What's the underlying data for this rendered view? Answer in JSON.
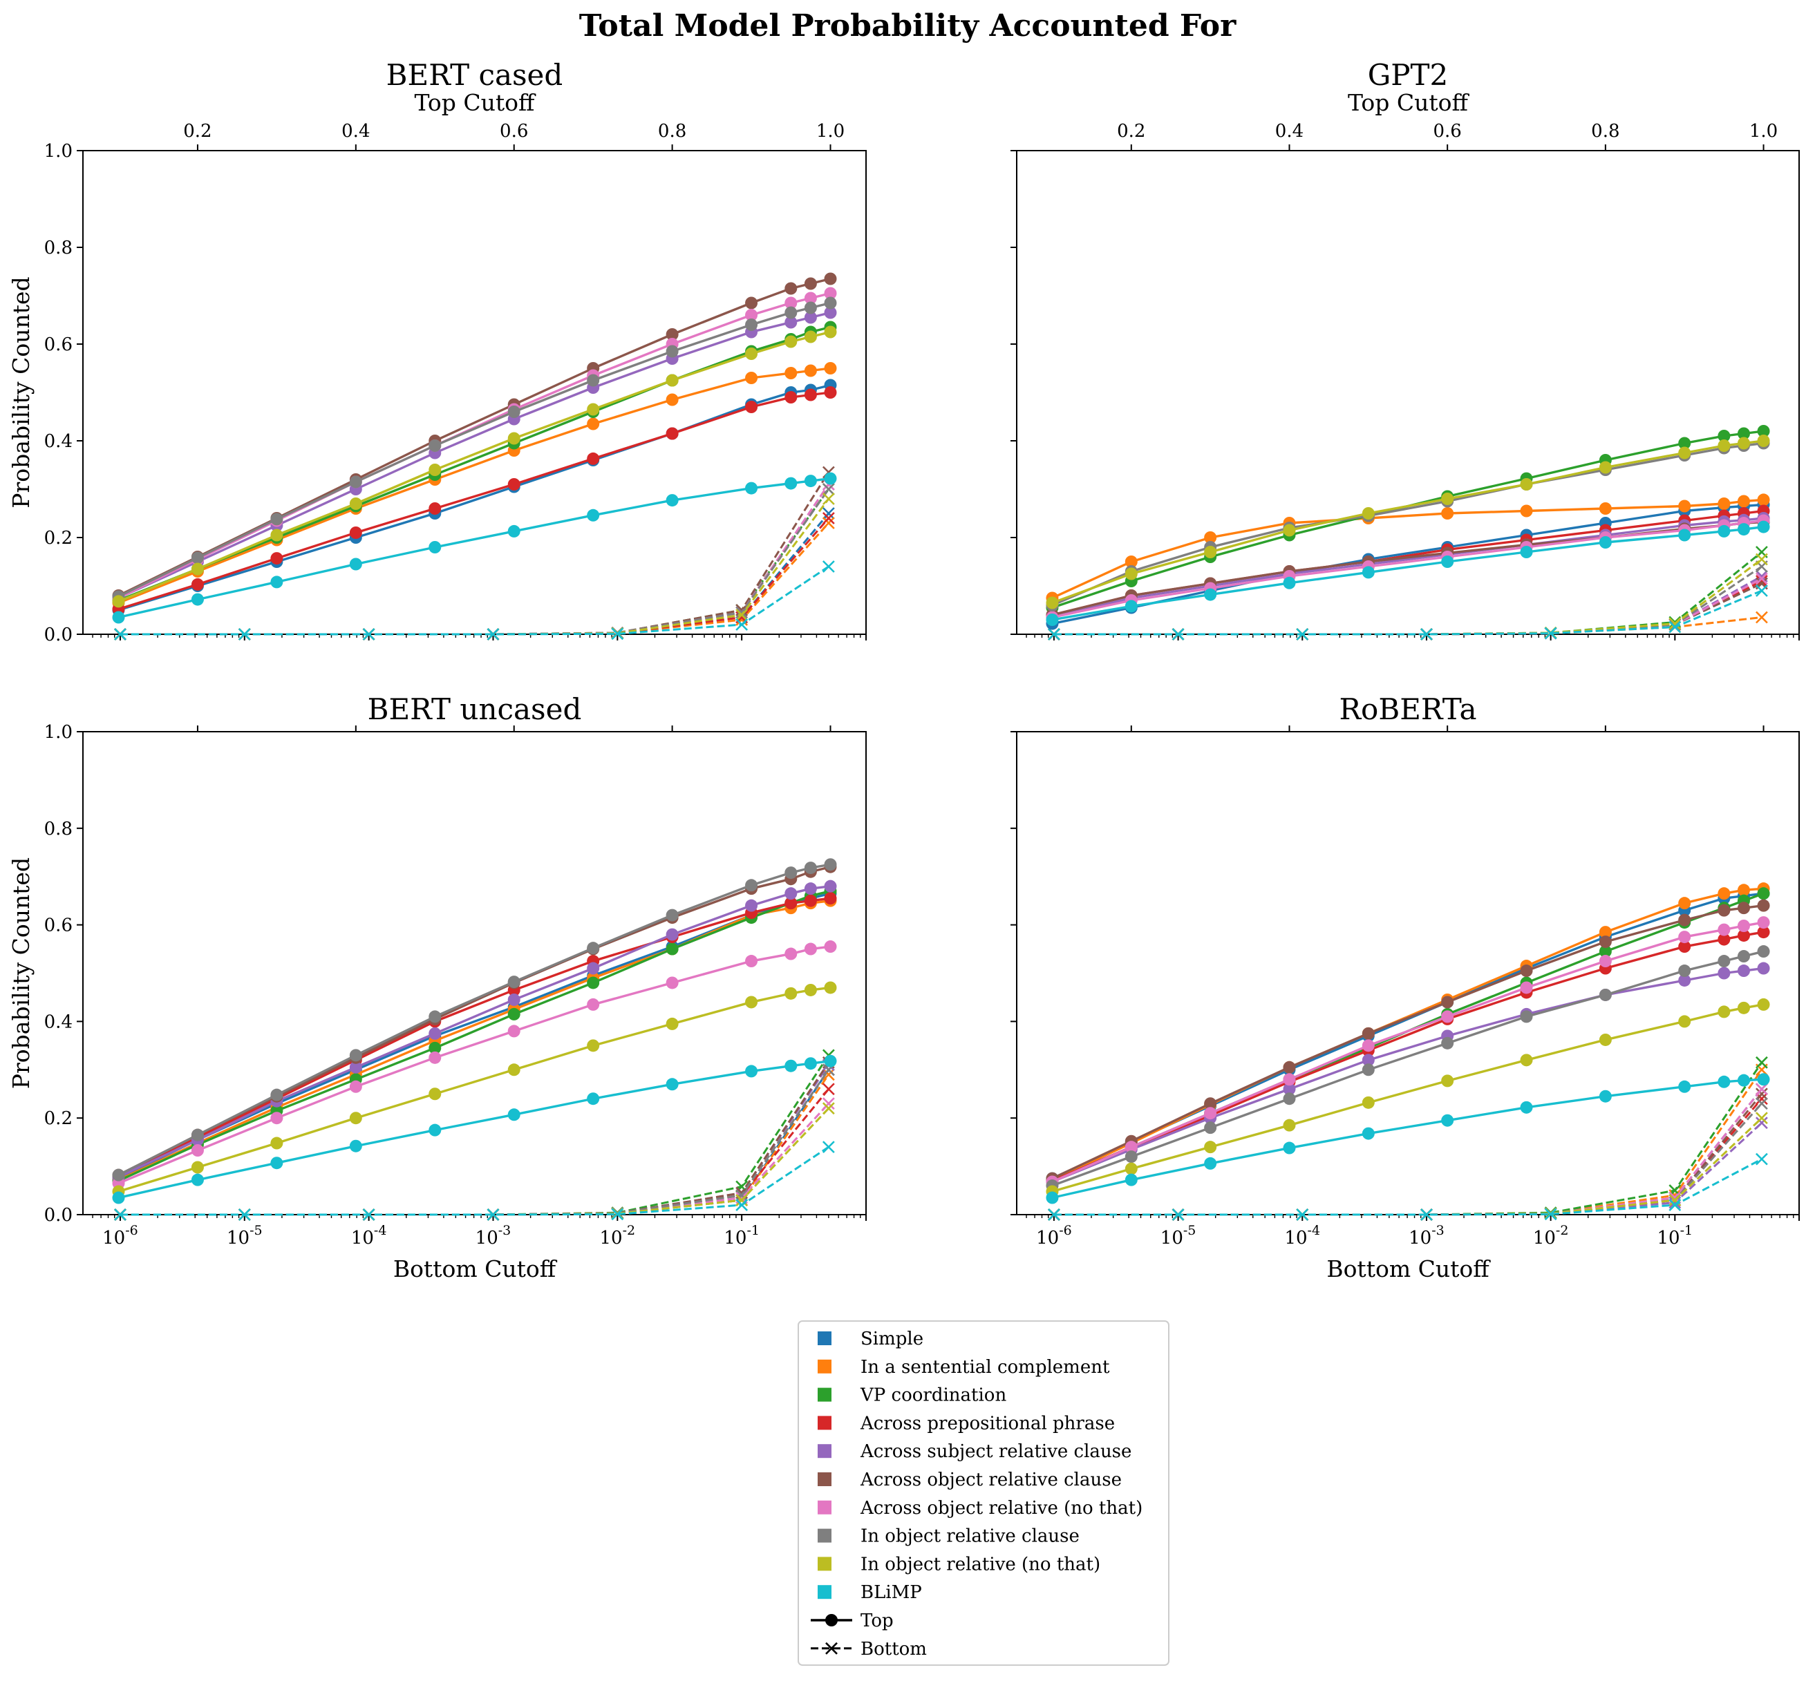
{
  "figure": {
    "title": "Total Model Probability Accounted For"
  },
  "chart_data": {
    "type": "line",
    "shared": {
      "bottom_cutoff_label": "Bottom Cutoff",
      "top_cutoff_label": "Top Cutoff",
      "ylabel": "Probability Counted",
      "ylim": [
        0,
        1.0
      ],
      "yticks": [
        "0.0",
        "0.2",
        "0.4",
        "0.6",
        "0.8",
        "1.0"
      ],
      "bottom_x_scale": "log",
      "bottom_x_ticks": [
        "10^-6",
        "10^-5",
        "10^-4",
        "10^-3",
        "10^-2",
        "10^-1"
      ],
      "top_x_ticks": [
        "0.2",
        "0.4",
        "0.6",
        "0.8",
        "1.0"
      ],
      "top_cutoff_x": [
        0.1,
        0.2,
        0.3,
        0.4,
        0.5,
        0.6,
        0.7,
        0.8,
        0.9,
        0.95,
        0.975,
        1.0
      ],
      "bottom_cutoff_x": [
        1e-06,
        1e-05,
        0.0001,
        0.001,
        0.01,
        0.1,
        0.5
      ]
    },
    "colors": [
      "#1f77b4",
      "#ff7f0e",
      "#2ca02c",
      "#d62728",
      "#9467bd",
      "#8c564b",
      "#e377c2",
      "#7f7f7f",
      "#bcbd22",
      "#17becf"
    ],
    "legend": {
      "placement": "bottom-center",
      "entries": [
        "Simple",
        "In a sentential complement",
        "VP coordination",
        "Across prepositional phrase",
        "Across subject relative clause",
        "Across object relative clause",
        "Across object relative (no that)",
        "In object relative clause",
        "In object relative (no that)",
        "BLiMP"
      ],
      "top_label": "Top",
      "bottom_label": "Bottom"
    },
    "panels": [
      {
        "title": "BERT cased",
        "top": [
          [
            0.05,
            0.1,
            0.15,
            0.2,
            0.25,
            0.305,
            0.36,
            0.415,
            0.475,
            0.5,
            0.505,
            0.515
          ],
          [
            0.065,
            0.13,
            0.195,
            0.26,
            0.32,
            0.38,
            0.435,
            0.485,
            0.53,
            0.54,
            0.545,
            0.55
          ],
          [
            0.07,
            0.135,
            0.2,
            0.265,
            0.33,
            0.395,
            0.46,
            0.525,
            0.585,
            0.61,
            0.625,
            0.635
          ],
          [
            0.052,
            0.103,
            0.157,
            0.21,
            0.26,
            0.31,
            0.363,
            0.415,
            0.47,
            0.49,
            0.495,
            0.5
          ],
          [
            0.075,
            0.15,
            0.225,
            0.3,
            0.375,
            0.445,
            0.51,
            0.57,
            0.625,
            0.645,
            0.655,
            0.665
          ],
          [
            0.08,
            0.16,
            0.24,
            0.32,
            0.4,
            0.475,
            0.55,
            0.62,
            0.685,
            0.715,
            0.725,
            0.735
          ],
          [
            0.075,
            0.155,
            0.235,
            0.315,
            0.39,
            0.465,
            0.535,
            0.6,
            0.66,
            0.685,
            0.695,
            0.705
          ],
          [
            0.078,
            0.158,
            0.238,
            0.315,
            0.39,
            0.46,
            0.525,
            0.585,
            0.64,
            0.665,
            0.675,
            0.685
          ],
          [
            0.068,
            0.135,
            0.205,
            0.27,
            0.34,
            0.405,
            0.465,
            0.525,
            0.58,
            0.605,
            0.615,
            0.625
          ],
          [
            0.035,
            0.072,
            0.108,
            0.145,
            0.18,
            0.213,
            0.246,
            0.277,
            0.302,
            0.312,
            0.317,
            0.322
          ]
        ],
        "bottom": [
          [
            0,
            0,
            0,
            0,
            0.002,
            0.035,
            0.25
          ],
          [
            0,
            0,
            0,
            0,
            0.002,
            0.03,
            0.23
          ],
          [
            0,
            0,
            0,
            0,
            0.003,
            0.05,
            0.3
          ],
          [
            0,
            0,
            0,
            0,
            0.002,
            0.035,
            0.24
          ],
          [
            0,
            0,
            0,
            0,
            0.003,
            0.045,
            0.31
          ],
          [
            0,
            0,
            0,
            0,
            0.003,
            0.05,
            0.335
          ],
          [
            0,
            0,
            0,
            0,
            0.003,
            0.045,
            0.31
          ],
          [
            0,
            0,
            0,
            0,
            0.003,
            0.045,
            0.3
          ],
          [
            0,
            0,
            0,
            0,
            0.002,
            0.04,
            0.28
          ],
          [
            0,
            0,
            0,
            0,
            0.001,
            0.02,
            0.14
          ]
        ]
      },
      {
        "title": "GPT2",
        "top": [
          [
            0.022,
            0.055,
            0.09,
            0.125,
            0.155,
            0.18,
            0.205,
            0.23,
            0.255,
            0.262,
            0.265,
            0.268
          ],
          [
            0.075,
            0.15,
            0.2,
            0.23,
            0.24,
            0.25,
            0.255,
            0.26,
            0.265,
            0.27,
            0.275,
            0.278
          ],
          [
            0.055,
            0.11,
            0.16,
            0.205,
            0.245,
            0.285,
            0.322,
            0.36,
            0.395,
            0.41,
            0.415,
            0.42
          ],
          [
            0.04,
            0.08,
            0.105,
            0.13,
            0.15,
            0.175,
            0.195,
            0.215,
            0.235,
            0.245,
            0.25,
            0.255
          ],
          [
            0.035,
            0.075,
            0.1,
            0.125,
            0.145,
            0.165,
            0.185,
            0.205,
            0.225,
            0.233,
            0.236,
            0.24
          ],
          [
            0.04,
            0.08,
            0.105,
            0.13,
            0.15,
            0.168,
            0.185,
            0.2,
            0.218,
            0.225,
            0.23,
            0.232
          ],
          [
            0.035,
            0.07,
            0.095,
            0.12,
            0.14,
            0.16,
            0.18,
            0.2,
            0.215,
            0.225,
            0.23,
            0.235
          ],
          [
            0.06,
            0.13,
            0.18,
            0.22,
            0.245,
            0.275,
            0.31,
            0.34,
            0.37,
            0.385,
            0.39,
            0.395
          ],
          [
            0.065,
            0.125,
            0.17,
            0.215,
            0.25,
            0.28,
            0.31,
            0.345,
            0.375,
            0.39,
            0.395,
            0.4
          ],
          [
            0.03,
            0.058,
            0.082,
            0.106,
            0.128,
            0.15,
            0.17,
            0.19,
            0.205,
            0.213,
            0.217,
            0.222
          ]
        ],
        "bottom": [
          [
            0,
            0,
            0,
            0,
            0.002,
            0.02,
            0.105
          ],
          [
            0,
            0,
            0,
            0,
            0.002,
            0.015,
            0.035
          ],
          [
            0,
            0,
            0,
            0,
            0.003,
            0.025,
            0.17
          ],
          [
            0,
            0,
            0,
            0,
            0.002,
            0.02,
            0.11
          ],
          [
            0,
            0,
            0,
            0,
            0.002,
            0.02,
            0.12
          ],
          [
            0,
            0,
            0,
            0,
            0.002,
            0.02,
            0.105
          ],
          [
            0,
            0,
            0,
            0,
            0.002,
            0.02,
            0.115
          ],
          [
            0,
            0,
            0,
            0,
            0.003,
            0.02,
            0.14
          ],
          [
            0,
            0,
            0,
            0,
            0.003,
            0.022,
            0.155
          ],
          [
            0,
            0,
            0,
            0,
            0.002,
            0.015,
            0.09
          ]
        ]
      },
      {
        "title": "BERT uncased",
        "top": [
          [
            0.075,
            0.155,
            0.23,
            0.3,
            0.37,
            0.43,
            0.495,
            0.555,
            0.62,
            0.645,
            0.655,
            0.665
          ],
          [
            0.072,
            0.148,
            0.222,
            0.29,
            0.36,
            0.425,
            0.49,
            0.55,
            0.62,
            0.635,
            0.645,
            0.65
          ],
          [
            0.07,
            0.145,
            0.215,
            0.28,
            0.345,
            0.415,
            0.48,
            0.55,
            0.615,
            0.645,
            0.66,
            0.67
          ],
          [
            0.08,
            0.16,
            0.24,
            0.32,
            0.4,
            0.465,
            0.525,
            0.575,
            0.625,
            0.645,
            0.65,
            0.655
          ],
          [
            0.078,
            0.155,
            0.235,
            0.305,
            0.375,
            0.445,
            0.51,
            0.58,
            0.64,
            0.665,
            0.675,
            0.68
          ],
          [
            0.082,
            0.165,
            0.245,
            0.325,
            0.405,
            0.48,
            0.55,
            0.615,
            0.675,
            0.695,
            0.71,
            0.72
          ],
          [
            0.065,
            0.133,
            0.2,
            0.265,
            0.325,
            0.38,
            0.435,
            0.48,
            0.525,
            0.54,
            0.55,
            0.555
          ],
          [
            0.082,
            0.165,
            0.248,
            0.33,
            0.41,
            0.482,
            0.552,
            0.62,
            0.682,
            0.708,
            0.718,
            0.725
          ],
          [
            0.048,
            0.098,
            0.148,
            0.2,
            0.25,
            0.3,
            0.35,
            0.395,
            0.44,
            0.458,
            0.465,
            0.47
          ],
          [
            0.035,
            0.072,
            0.107,
            0.142,
            0.175,
            0.207,
            0.24,
            0.27,
            0.297,
            0.308,
            0.313,
            0.318
          ]
        ],
        "bottom": [
          [
            0,
            0,
            0,
            0,
            0.002,
            0.03,
            0.3
          ],
          [
            0,
            0,
            0,
            0,
            0.002,
            0.03,
            0.29
          ],
          [
            0,
            0,
            0,
            0,
            0.004,
            0.058,
            0.33
          ],
          [
            0,
            0,
            0,
            0,
            0.003,
            0.04,
            0.26
          ],
          [
            0,
            0,
            0,
            0,
            0.003,
            0.045,
            0.31
          ],
          [
            0,
            0,
            0,
            0,
            0.003,
            0.045,
            0.315
          ],
          [
            0,
            0,
            0,
            0,
            0.002,
            0.035,
            0.23
          ],
          [
            0,
            0,
            0,
            0,
            0.003,
            0.04,
            0.3
          ],
          [
            0,
            0,
            0,
            0,
            0.002,
            0.03,
            0.22
          ],
          [
            0,
            0,
            0,
            0,
            0.001,
            0.02,
            0.14
          ]
        ]
      },
      {
        "title": "RoBERTa",
        "top": [
          [
            0.075,
            0.15,
            0.225,
            0.3,
            0.37,
            0.44,
            0.51,
            0.575,
            0.63,
            0.655,
            0.66,
            0.665
          ],
          [
            0.072,
            0.148,
            0.228,
            0.305,
            0.375,
            0.445,
            0.515,
            0.585,
            0.645,
            0.665,
            0.672,
            0.675
          ],
          [
            0.07,
            0.14,
            0.21,
            0.28,
            0.345,
            0.415,
            0.48,
            0.545,
            0.605,
            0.635,
            0.65,
            0.665
          ],
          [
            0.07,
            0.14,
            0.205,
            0.275,
            0.34,
            0.405,
            0.46,
            0.51,
            0.555,
            0.57,
            0.578,
            0.585
          ],
          [
            0.068,
            0.135,
            0.2,
            0.26,
            0.32,
            0.37,
            0.415,
            0.455,
            0.485,
            0.5,
            0.505,
            0.51
          ],
          [
            0.075,
            0.152,
            0.23,
            0.305,
            0.375,
            0.44,
            0.505,
            0.565,
            0.61,
            0.63,
            0.635,
            0.64
          ],
          [
            0.068,
            0.14,
            0.21,
            0.28,
            0.35,
            0.41,
            0.47,
            0.525,
            0.575,
            0.59,
            0.598,
            0.605
          ],
          [
            0.06,
            0.12,
            0.18,
            0.24,
            0.3,
            0.355,
            0.41,
            0.455,
            0.505,
            0.525,
            0.535,
            0.545
          ],
          [
            0.048,
            0.095,
            0.14,
            0.185,
            0.232,
            0.277,
            0.32,
            0.362,
            0.4,
            0.42,
            0.428,
            0.435
          ],
          [
            0.035,
            0.072,
            0.106,
            0.138,
            0.168,
            0.195,
            0.222,
            0.245,
            0.265,
            0.275,
            0.278,
            0.28
          ]
        ],
        "bottom": [
          [
            0,
            0,
            0,
            0,
            0.002,
            0.035,
            0.26
          ],
          [
            0,
            0,
            0,
            0,
            0.003,
            0.04,
            0.3
          ],
          [
            0,
            0,
            0,
            0,
            0.004,
            0.05,
            0.315
          ],
          [
            0,
            0,
            0,
            0,
            0.002,
            0.03,
            0.24
          ],
          [
            0,
            0,
            0,
            0,
            0.002,
            0.025,
            0.19
          ],
          [
            0,
            0,
            0,
            0,
            0.002,
            0.03,
            0.25
          ],
          [
            0,
            0,
            0,
            0,
            0.002,
            0.035,
            0.26
          ],
          [
            0,
            0,
            0,
            0,
            0.002,
            0.03,
            0.23
          ],
          [
            0,
            0,
            0,
            0,
            0.002,
            0.03,
            0.2
          ],
          [
            0,
            0,
            0,
            0,
            0.001,
            0.02,
            0.115
          ]
        ]
      }
    ]
  }
}
